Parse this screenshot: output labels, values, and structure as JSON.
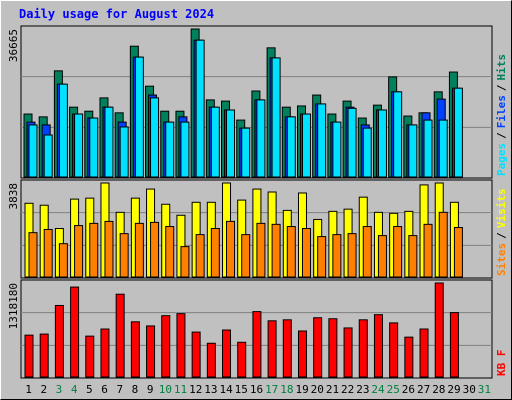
{
  "chart_data": [
    {
      "type": "bar",
      "title": "Daily usage for August 2024",
      "categories": [
        "1",
        "2",
        "3",
        "4",
        "5",
        "6",
        "7",
        "8",
        "9",
        "10",
        "11",
        "12",
        "13",
        "14",
        "15",
        "16",
        "17",
        "18",
        "19",
        "20",
        "21",
        "22",
        "23",
        "24",
        "25",
        "26",
        "27",
        "28",
        "29",
        "30",
        "31"
      ],
      "category_colors": [
        "#000000",
        "#000000",
        "#008040",
        "#008040",
        "#000000",
        "#000000",
        "#000000",
        "#000000",
        "#000000",
        "#008040",
        "#008040",
        "#000000",
        "#000000",
        "#000000",
        "#000000",
        "#000000",
        "#008040",
        "#008040",
        "#000000",
        "#000000",
        "#000000",
        "#000000",
        "#000000",
        "#008040",
        "#008040",
        "#000000",
        "#000000",
        "#000000",
        "#000000",
        "#000000",
        "#008040"
      ],
      "legend_separator": "/",
      "ylim": [
        0,
        36665
      ],
      "yticks": [
        36665
      ],
      "grid": true,
      "series": [
        {
          "name": "Hits",
          "color": "#00805c",
          "values": [
            15600,
            14900,
            26300,
            17300,
            16300,
            19600,
            15900,
            32400,
            22500,
            16300,
            16300,
            36665,
            19100,
            18800,
            14100,
            21300,
            32000,
            17300,
            17600,
            20300,
            15600,
            18800,
            14600,
            17800,
            24800,
            15100,
            15900,
            21100,
            26000,
            null,
            null
          ]
        },
        {
          "name": "Files",
          "color": "#0040ff",
          "values": [
            13600,
            12900,
            23000,
            15600,
            14600,
            17300,
            13600,
            29700,
            20300,
            13600,
            14900,
            33900,
            17300,
            16600,
            12100,
            19100,
            29500,
            14900,
            15600,
            18100,
            13600,
            17300,
            12900,
            16600,
            21100,
            12900,
            15900,
            19300,
            22000,
            null,
            null
          ]
        },
        {
          "name": "Pages",
          "color": "#00e0ff",
          "values": [
            12900,
            10400,
            23000,
            15600,
            14600,
            17300,
            12400,
            29700,
            19600,
            13600,
            13600,
            33900,
            17300,
            16600,
            12100,
            19100,
            29500,
            14900,
            15600,
            18100,
            13600,
            17000,
            12100,
            16600,
            21100,
            12900,
            14100,
            14100,
            22000,
            null,
            null
          ]
        }
      ]
    },
    {
      "type": "bar",
      "ylim": [
        0,
        3838
      ],
      "yticks": [
        3838
      ],
      "grid": true,
      "series": [
        {
          "name": "Visits",
          "color": "#ffff00",
          "values": [
            3010,
            2930,
            1980,
            3180,
            3220,
            3838,
            2640,
            3220,
            3590,
            2970,
            2520,
            3050,
            3050,
            3838,
            3140,
            3590,
            3470,
            2720,
            3430,
            2350,
            2680,
            2770,
            3260,
            2640,
            2600,
            2680,
            3760,
            3838,
            3050,
            null,
            null
          ]
        },
        {
          "name": "Sites",
          "color": "#ff8000",
          "values": [
            1810,
            1940,
            1360,
            2100,
            2190,
            2270,
            1770,
            2190,
            2230,
            2060,
            1240,
            1730,
            1980,
            2270,
            1730,
            2190,
            2150,
            2060,
            1980,
            1650,
            1730,
            1770,
            2060,
            1690,
            2060,
            1690,
            2150,
            2640,
            2020,
            null,
            null
          ]
        }
      ]
    },
    {
      "type": "bar",
      "ylim": [
        0,
        1318180
      ],
      "yticks": [
        1318180
      ],
      "grid": true,
      "series": [
        {
          "name": "KB F",
          "color": "#ff0000",
          "values": [
            587000,
            602000,
            1003000,
            1261000,
            573000,
            673000,
            1161000,
            774000,
            716000,
            860000,
            888000,
            630000,
            473000,
            659000,
            487000,
            917000,
            788000,
            802000,
            645000,
            831000,
            817000,
            688000,
            802000,
            874000,
            759000,
            559000,
            673000,
            1318180,
            903000,
            null,
            null
          ]
        }
      ]
    }
  ]
}
